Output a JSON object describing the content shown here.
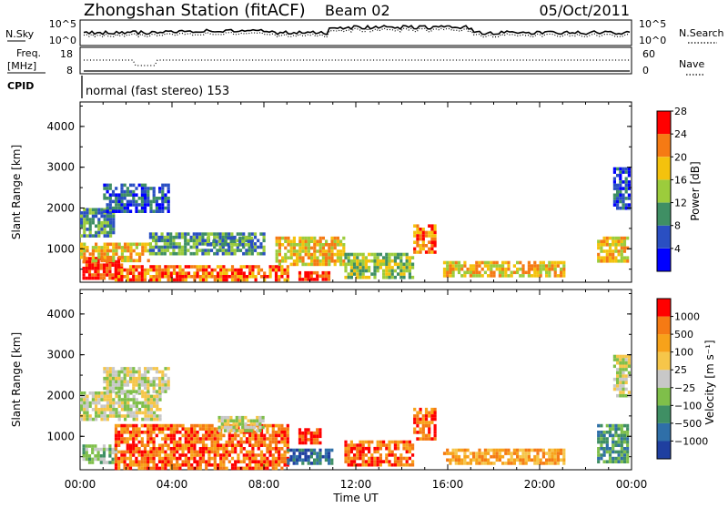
{
  "header": {
    "station": "Zhongshan Station (fitACF)",
    "beam": "Beam 02",
    "date": "05/Oct/2011"
  },
  "strips": {
    "noise": {
      "left_label": "N.Sky",
      "right_label": "N.Search",
      "left_ticks": [
        "10^5",
        "10^0"
      ],
      "right_ticks": [
        "10^5",
        "10^0"
      ]
    },
    "freq": {
      "left_label_top": "Freq.",
      "left_label_bottom": "[MHz]",
      "right_label": "Nave",
      "left_ticks": [
        "18",
        "8"
      ],
      "right_ticks": [
        "60",
        "0"
      ]
    },
    "cpid": {
      "label": "CPID",
      "text": "normal (fast stereo) 153"
    }
  },
  "chart_data": [
    {
      "type": "heatmap",
      "title": "",
      "ylabel": "Slant Range [km]",
      "xlabel": "",
      "ylim": [
        180,
        4600
      ],
      "y_ticks": [
        "1000",
        "2000",
        "3000",
        "4000"
      ],
      "x_ticks": [
        "00:00",
        "04:00",
        "08:00",
        "12:00",
        "16:00",
        "20:00",
        "00:00"
      ],
      "colorbar": {
        "label": "Power [dB]",
        "tick_labels": [
          "4",
          "8",
          "12",
          "16",
          "20",
          "24",
          "28"
        ],
        "range": [
          0,
          30
        ],
        "colors": [
          "#0000ff",
          "#2a4fc2",
          "#3f8f64",
          "#9ccc3c",
          "#f4c20d",
          "#f57a14",
          "#ff0000"
        ]
      },
      "series": [
        {
          "start_hour": 0.1,
          "end_hour": 1.8,
          "range_start": 300,
          "range_end": 800,
          "level": 6
        },
        {
          "start_hour": 0.0,
          "end_hour": 3.0,
          "range_start": 700,
          "range_end": 1150,
          "level": 4
        },
        {
          "start_hour": 0.0,
          "end_hour": 1.5,
          "range_start": 1300,
          "range_end": 2000,
          "level": 2
        },
        {
          "start_hour": 1.0,
          "end_hour": 3.8,
          "range_start": 1900,
          "range_end": 2600,
          "level": 1
        },
        {
          "start_hour": 1.5,
          "end_hour": 9.0,
          "range_start": 250,
          "range_end": 600,
          "level": 5
        },
        {
          "start_hour": 3.0,
          "end_hour": 8.0,
          "range_start": 900,
          "range_end": 1400,
          "level": 2
        },
        {
          "start_hour": 5.5,
          "end_hour": 7.5,
          "range_start": 1100,
          "range_end": 1300,
          "level": 2
        },
        {
          "start_hour": 8.5,
          "end_hour": 11.5,
          "range_start": 600,
          "range_end": 1300,
          "level": 4
        },
        {
          "start_hour": 9.5,
          "end_hour": 10.8,
          "range_start": 250,
          "range_end": 450,
          "level": 6
        },
        {
          "start_hour": 11.5,
          "end_hour": 14.5,
          "range_start": 300,
          "range_end": 900,
          "level": 3
        },
        {
          "start_hour": 14.5,
          "end_hour": 15.5,
          "range_start": 900,
          "range_end": 1600,
          "level": 5
        },
        {
          "start_hour": 15.8,
          "end_hour": 21.0,
          "range_start": 300,
          "range_end": 700,
          "level": 4
        },
        {
          "start_hour": 22.5,
          "end_hour": 23.8,
          "range_start": 700,
          "range_end": 1300,
          "level": 4
        },
        {
          "start_hour": 23.2,
          "end_hour": 23.9,
          "range_start": 2000,
          "range_end": 3000,
          "level": 1
        }
      ]
    },
    {
      "type": "heatmap",
      "title": "",
      "ylabel": "Slant Range [km]",
      "xlabel": "Time UT",
      "ylim": [
        180,
        4600
      ],
      "y_ticks": [
        "1000",
        "2000",
        "3000",
        "4000"
      ],
      "x_ticks": [
        "00:00",
        "04:00",
        "08:00",
        "12:00",
        "16:00",
        "20:00",
        "00:00"
      ],
      "colorbar": {
        "label": "Velocity [m s⁻¹]",
        "tick_labels": [
          "1000",
          "500",
          "100",
          "25",
          "−25",
          "−100",
          "−500",
          "−1000"
        ],
        "range": [
          -1000,
          1000
        ],
        "colors": [
          "#1f3fa0",
          "#2f6fa8",
          "#3f8f64",
          "#7fbf4a",
          "#c8c8c8",
          "#f6c64a",
          "#f7a21a",
          "#f57a14",
          "#ff0000"
        ]
      },
      "series": [
        {
          "start_hour": 0.1,
          "end_hour": 1.5,
          "range_start": 350,
          "range_end": 800,
          "level": 3
        },
        {
          "start_hour": 0.0,
          "end_hour": 3.5,
          "range_start": 1400,
          "range_end": 2100,
          "level": 4
        },
        {
          "start_hour": 1.0,
          "end_hour": 3.8,
          "range_start": 2100,
          "range_end": 2700,
          "level": 4
        },
        {
          "start_hour": 1.5,
          "end_hour": 9.0,
          "range_start": 250,
          "range_end": 1300,
          "level": 7
        },
        {
          "start_hour": 6.0,
          "end_hour": 8.0,
          "range_start": 1100,
          "range_end": 1500,
          "level": 4
        },
        {
          "start_hour": 9.5,
          "end_hour": 10.5,
          "range_start": 800,
          "range_end": 1200,
          "level": 8
        },
        {
          "start_hour": 9.0,
          "end_hour": 11.0,
          "range_start": 300,
          "range_end": 700,
          "level": 1
        },
        {
          "start_hour": 11.5,
          "end_hour": 14.5,
          "range_start": 300,
          "range_end": 900,
          "level": 7
        },
        {
          "start_hour": 14.5,
          "end_hour": 15.5,
          "range_start": 900,
          "range_end": 1700,
          "level": 7
        },
        {
          "start_hour": 15.8,
          "end_hour": 21.0,
          "range_start": 300,
          "range_end": 700,
          "level": 6
        },
        {
          "start_hour": 22.5,
          "end_hour": 23.8,
          "range_start": 400,
          "range_end": 1300,
          "level": 2
        },
        {
          "start_hour": 23.2,
          "end_hour": 23.9,
          "range_start": 2000,
          "range_end": 3000,
          "level": 4
        }
      ]
    }
  ]
}
